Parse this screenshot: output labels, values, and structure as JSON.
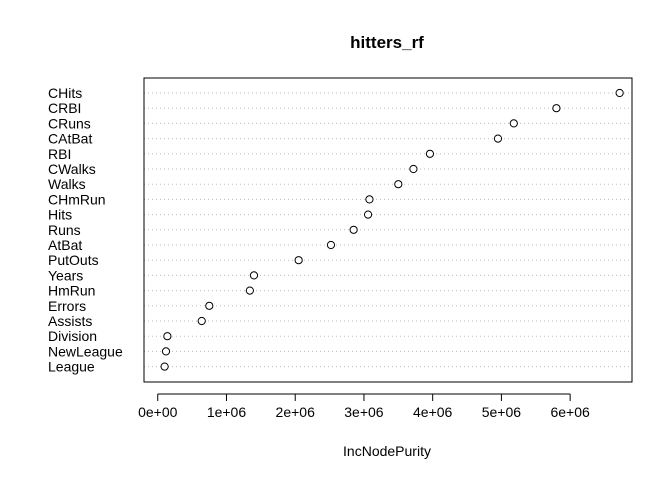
{
  "chart_data": {
    "type": "scatter",
    "title": "hitters_rf",
    "xlabel": "IncNodePurity",
    "ylabel": "",
    "xlim": [
      -200000,
      6900000
    ],
    "grid": "horizontal dotted lines",
    "variables": [
      "CHits",
      "CRBI",
      "CRuns",
      "CAtBat",
      "RBI",
      "CWalks",
      "Walks",
      "CHmRun",
      "Hits",
      "Runs",
      "AtBat",
      "PutOuts",
      "Years",
      "HmRun",
      "Errors",
      "Assists",
      "Division",
      "NewLeague",
      "League"
    ],
    "values": [
      6720000,
      5800000,
      5180000,
      4950000,
      3960000,
      3720000,
      3500000,
      3080000,
      3060000,
      2850000,
      2520000,
      2050000,
      1400000,
      1340000,
      750000,
      640000,
      140000,
      120000,
      100000
    ],
    "xticks": [
      0,
      1000000,
      2000000,
      3000000,
      4000000,
      5000000,
      6000000
    ],
    "xtick_labels": [
      "0e+00",
      "1e+06",
      "2e+06",
      "3e+06",
      "4e+06",
      "5e+06",
      "6e+06"
    ]
  }
}
